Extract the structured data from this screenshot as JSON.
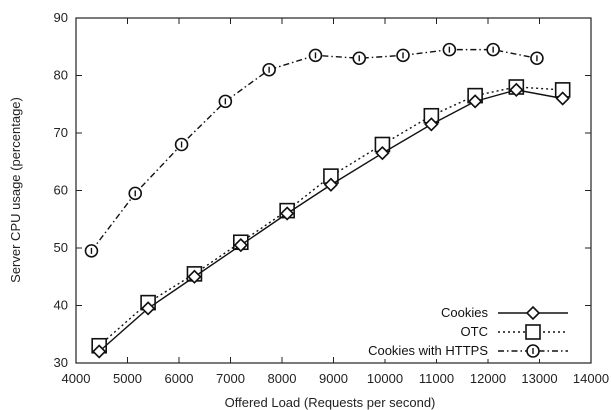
{
  "chart_data": {
    "type": "line",
    "title": "",
    "xlabel": "Offered Load (Requests per second)",
    "ylabel": "Server CPU usage (percentage)",
    "xlim": [
      4000,
      14000
    ],
    "ylim": [
      30,
      90
    ],
    "x_ticks": [
      "4000",
      "5000",
      "6000",
      "7000",
      "8000",
      "9000",
      "10000",
      "11000",
      "12000",
      "13000",
      "14000"
    ],
    "y_ticks": [
      "30",
      "40",
      "50",
      "60",
      "70",
      "80",
      "90"
    ],
    "grid": false,
    "legend_position": "bottom-right",
    "series": [
      {
        "name": "Cookies",
        "marker": "diamond",
        "line_style": "solid",
        "x": [
          4450,
          5400,
          6300,
          7200,
          8100,
          8950,
          9950,
          10900,
          11750,
          12550,
          13450
        ],
        "y": [
          32,
          39.5,
          45,
          50.5,
          56,
          61,
          66.5,
          71.5,
          75.5,
          77.5,
          76
        ]
      },
      {
        "name": "OTC",
        "marker": "square",
        "line_style": "dotted",
        "x": [
          4450,
          5400,
          6300,
          7200,
          8100,
          8950,
          9950,
          10900,
          11750,
          12550,
          13450
        ],
        "y": [
          33,
          40.5,
          45.5,
          51,
          56.5,
          62.5,
          68,
          73,
          76.5,
          78,
          77.5
        ]
      },
      {
        "name": "Cookies with HTTPS",
        "marker": "circle",
        "line_style": "dash-dot",
        "x": [
          4300,
          5150,
          6050,
          6900,
          7750,
          8650,
          9500,
          10350,
          11250,
          12100,
          12950
        ],
        "y": [
          49.5,
          59.5,
          68,
          75.5,
          81,
          83.5,
          83,
          83.5,
          84.5,
          84.5,
          83
        ]
      }
    ]
  }
}
